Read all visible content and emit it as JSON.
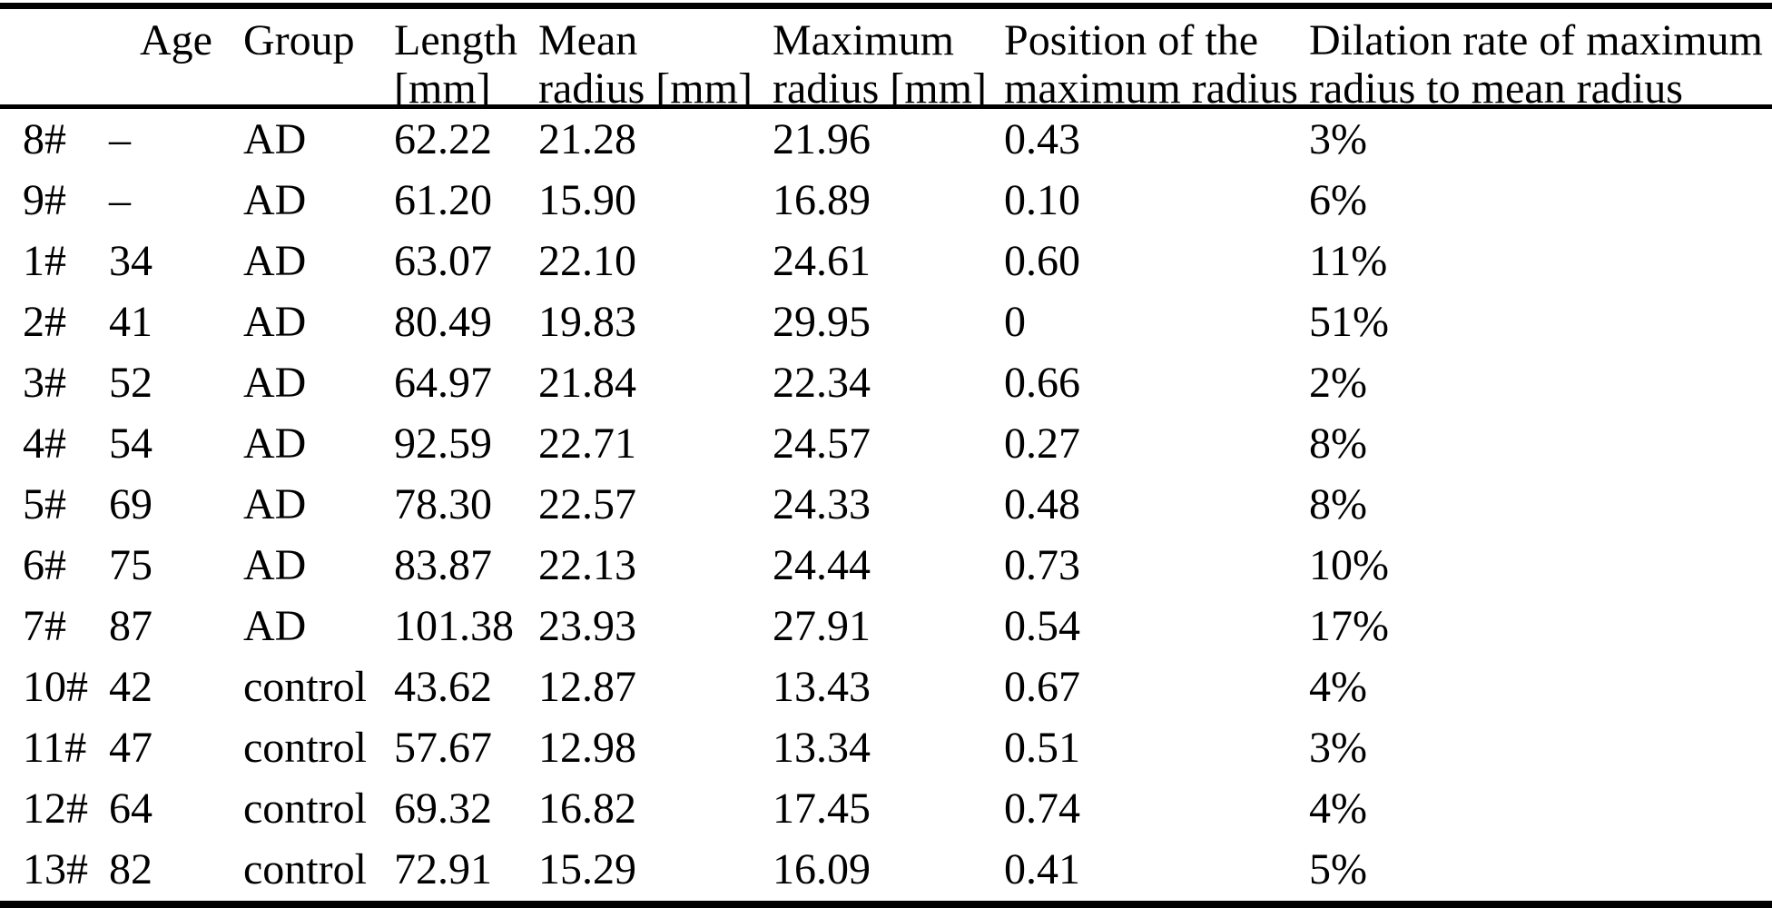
{
  "colors": {
    "text": "#000000",
    "background": "#ffffff",
    "rule": "#000000"
  },
  "table": {
    "columns": [
      {
        "key": "id",
        "line1": "",
        "line2": ""
      },
      {
        "key": "age",
        "line1": "Age",
        "line2": ""
      },
      {
        "key": "group",
        "line1": "Group",
        "line2": ""
      },
      {
        "key": "length",
        "line1": "Length",
        "line2": "[mm]"
      },
      {
        "key": "mean_radius",
        "line1": "Mean",
        "line2": "radius [mm]"
      },
      {
        "key": "max_radius",
        "line1": "Maximum",
        "line2": "radius [mm]"
      },
      {
        "key": "position",
        "line1": "Position of the",
        "line2": "maximum radius"
      },
      {
        "key": "dilation",
        "line1": "Dilation rate of maximum",
        "line2": "radius to mean radius"
      }
    ],
    "rows": [
      [
        "8#",
        "–",
        "AD",
        "62.22",
        "21.28",
        "21.96",
        "0.43",
        "3%"
      ],
      [
        "9#",
        "–",
        "AD",
        "61.20",
        "15.90",
        "16.89",
        "0.10",
        "6%"
      ],
      [
        "1#",
        "34",
        "AD",
        "63.07",
        "22.10",
        "24.61",
        "0.60",
        "11%"
      ],
      [
        "2#",
        "41",
        "AD",
        "80.49",
        "19.83",
        "29.95",
        "0",
        "51%"
      ],
      [
        "3#",
        "52",
        "AD",
        "64.97",
        "21.84",
        "22.34",
        "0.66",
        "2%"
      ],
      [
        "4#",
        "54",
        "AD",
        "92.59",
        "22.71",
        "24.57",
        "0.27",
        "8%"
      ],
      [
        "5#",
        "69",
        "AD",
        "78.30",
        "22.57",
        "24.33",
        "0.48",
        "8%"
      ],
      [
        "6#",
        "75",
        "AD",
        "83.87",
        "22.13",
        "24.44",
        "0.73",
        "10%"
      ],
      [
        "7#",
        "87",
        "AD",
        "101.38",
        "23.93",
        "27.91",
        "0.54",
        "17%"
      ],
      [
        "10#",
        "42",
        "control",
        "43.62",
        "12.87",
        "13.43",
        "0.67",
        "4%"
      ],
      [
        "11#",
        "47",
        "control",
        "57.67",
        "12.98",
        "13.34",
        "0.51",
        "3%"
      ],
      [
        "12#",
        "64",
        "control",
        "69.32",
        "16.82",
        "17.45",
        "0.74",
        "4%"
      ],
      [
        "13#",
        "82",
        "control",
        "72.91",
        "15.29",
        "16.09",
        "0.41",
        "5%"
      ]
    ]
  }
}
